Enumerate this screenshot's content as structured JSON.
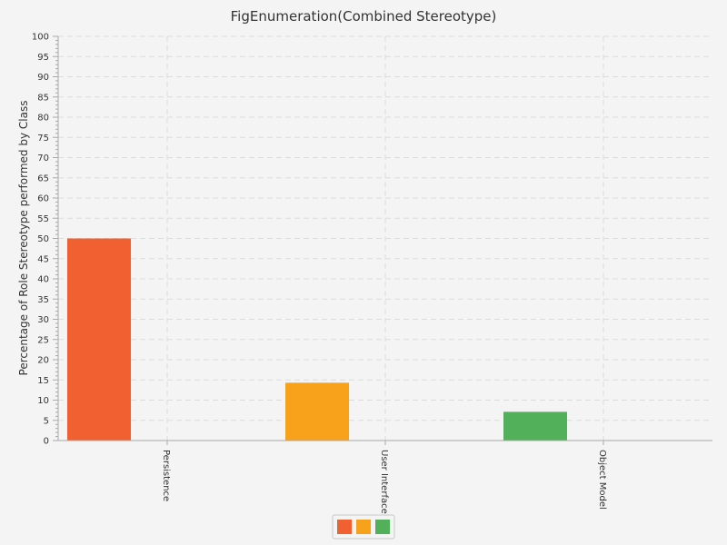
{
  "chart_data": {
    "type": "bar",
    "title": "FigEnumeration(Combined Stereotype)",
    "xlabel": "",
    "ylabel": "Percentage of Role Stereotype performed by Class",
    "ylim": [
      0,
      100
    ],
    "ytick_step": 5,
    "yminor_step": 1,
    "grid": true,
    "legend_position": "bottom-center",
    "categories": [
      "Persistence",
      "User Interface",
      "Object Model"
    ],
    "values": [
      50,
      14.3,
      7.1
    ],
    "colors": [
      "#f06030",
      "#f8a21c",
      "#52b05a"
    ]
  }
}
